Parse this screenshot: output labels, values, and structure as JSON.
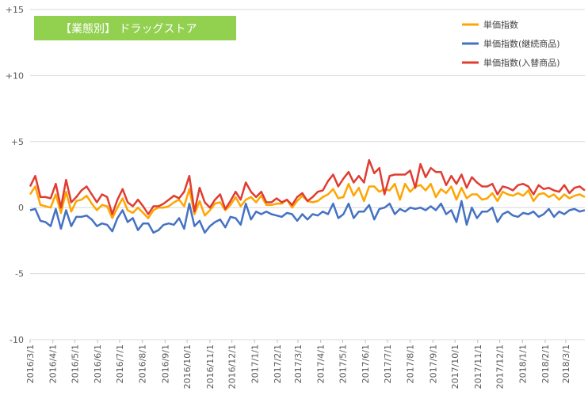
{
  "chart_data": {
    "type": "line",
    "title": "【業態別】 ドラッグストア",
    "title_bg_color": "#92d050",
    "ylim": [
      -10,
      15
    ],
    "y_ticks": [
      {
        "value": 15,
        "label": "+15"
      },
      {
        "value": 10,
        "label": "+10"
      },
      {
        "value": 5,
        "label": "+5"
      },
      {
        "value": 0,
        "label": "0"
      },
      {
        "value": -5,
        "label": "-5"
      },
      {
        "value": -10,
        "label": "-10"
      }
    ],
    "grid": true,
    "legend_position": "top-right",
    "x_start": "2016-03-01",
    "x_interval": "weekly",
    "x_tick_labels": [
      "2016/3/1",
      "2016/4/1",
      "2016/5/1",
      "2016/6/1",
      "2016/7/1",
      "2016/8/1",
      "2016/9/1",
      "2016/10/1",
      "2016/11/1",
      "2016/12/1",
      "2017/1/1",
      "2017/2/1",
      "2017/3/1",
      "2017/4/1",
      "2017/5/1",
      "2017/6/1",
      "2017/7/1",
      "2017/8/1",
      "2017/9/1",
      "2017/10/1",
      "2017/11/1",
      "2017/12/1",
      "2018/1/1",
      "2018/2/1",
      "2018/3/1"
    ],
    "x_tick_dates": [
      "2016-03-01",
      "2016-04-01",
      "2016-05-01",
      "2016-06-01",
      "2016-07-01",
      "2016-08-01",
      "2016-09-01",
      "2016-10-01",
      "2016-11-01",
      "2016-12-01",
      "2017-01-01",
      "2017-02-01",
      "2017-03-01",
      "2017-04-01",
      "2017-05-01",
      "2017-06-01",
      "2017-07-01",
      "2017-08-01",
      "2017-09-01",
      "2017-10-01",
      "2017-11-01",
      "2017-12-01",
      "2018-01-01",
      "2018-02-01",
      "2018-03-01"
    ],
    "series": [
      {
        "name": "単価指数",
        "color": "#ffa500",
        "values": [
          1.0,
          1.6,
          0.2,
          0.1,
          0.0,
          1.0,
          -0.4,
          1.2,
          -0.3,
          0.5,
          0.6,
          0.9,
          0.3,
          -0.2,
          0.2,
          0.1,
          -0.8,
          0.0,
          0.7,
          -0.2,
          -0.4,
          0.0,
          -0.4,
          -0.8,
          -0.2,
          0.0,
          0.0,
          0.1,
          0.4,
          0.6,
          0.1,
          1.4,
          -0.5,
          0.5,
          -0.6,
          -0.2,
          0.3,
          0.4,
          -0.2,
          0.2,
          0.8,
          0.1,
          0.6,
          0.8,
          0.4,
          0.9,
          0.2,
          0.2,
          0.3,
          0.3,
          0.6,
          0.0,
          0.5,
          0.9,
          0.5,
          0.4,
          0.5,
          0.8,
          1.0,
          1.4,
          0.7,
          0.8,
          1.8,
          0.9,
          1.5,
          0.5,
          1.6,
          1.6,
          1.2,
          1.4,
          1.3,
          1.8,
          0.6,
          1.8,
          1.2,
          1.6,
          1.7,
          1.3,
          1.8,
          0.8,
          1.4,
          1.1,
          1.6,
          0.6,
          1.5,
          0.7,
          1.0,
          1.0,
          0.6,
          0.7,
          1.1,
          0.5,
          1.2,
          1.0,
          0.9,
          1.1,
          0.9,
          1.3,
          0.5,
          1.0,
          1.1,
          0.8,
          1.0,
          0.6,
          1.0,
          0.7,
          0.9,
          1.0,
          0.8
        ]
      },
      {
        "name": "単価指数(継続商品)",
        "color": "#4472c4",
        "values": [
          -0.2,
          -0.1,
          -1.0,
          -1.1,
          -1.4,
          -0.1,
          -1.6,
          -0.2,
          -1.4,
          -0.7,
          -0.7,
          -0.6,
          -0.9,
          -1.4,
          -1.2,
          -1.3,
          -1.8,
          -0.8,
          -0.2,
          -1.1,
          -0.8,
          -1.7,
          -1.2,
          -1.2,
          -1.9,
          -1.7,
          -1.3,
          -1.2,
          -1.3,
          -0.8,
          -1.6,
          0.3,
          -1.4,
          -1.0,
          -1.9,
          -1.4,
          -1.1,
          -0.9,
          -1.5,
          -0.7,
          -0.8,
          -1.3,
          0.3,
          -0.9,
          -0.3,
          -0.5,
          -0.3,
          -0.5,
          -0.6,
          -0.7,
          -0.4,
          -0.5,
          -1.0,
          -0.5,
          -0.9,
          -0.5,
          -0.6,
          -0.3,
          -0.5,
          0.3,
          -0.8,
          -0.5,
          0.3,
          -0.8,
          -0.3,
          -0.3,
          0.2,
          -0.9,
          -0.1,
          0.0,
          0.3,
          -0.5,
          -0.1,
          -0.3,
          0.0,
          -0.1,
          0.0,
          -0.2,
          0.1,
          -0.2,
          0.3,
          -0.5,
          -0.2,
          -1.1,
          0.5,
          -1.3,
          0.0,
          -0.8,
          -0.3,
          -0.3,
          0.0,
          -1.1,
          -0.5,
          -0.3,
          -0.6,
          -0.7,
          -0.4,
          -0.5,
          -0.3,
          -0.7,
          -0.5,
          -0.1,
          -0.7,
          -0.3,
          -0.5,
          -0.2,
          -0.1,
          -0.3,
          -0.2
        ]
      },
      {
        "name": "単価指数(入替商品)",
        "color": "#e03c31",
        "values": [
          1.6,
          2.4,
          0.8,
          0.8,
          0.7,
          1.8,
          0.0,
          2.1,
          0.4,
          0.8,
          1.3,
          1.6,
          1.0,
          0.4,
          1.0,
          0.8,
          -0.5,
          0.6,
          1.4,
          0.4,
          0.1,
          0.6,
          0.1,
          -0.5,
          0.1,
          0.1,
          0.3,
          0.6,
          0.9,
          0.7,
          1.2,
          2.4,
          -0.3,
          1.5,
          0.4,
          0.0,
          0.6,
          1.0,
          -0.1,
          0.5,
          1.2,
          0.6,
          1.9,
          1.2,
          0.8,
          1.2,
          0.4,
          0.4,
          0.7,
          0.4,
          0.6,
          0.2,
          0.8,
          1.1,
          0.5,
          0.8,
          1.2,
          1.3,
          2.0,
          2.5,
          1.6,
          2.2,
          2.7,
          1.9,
          2.4,
          1.9,
          3.6,
          2.6,
          3.0,
          1.0,
          2.4,
          2.5,
          2.5,
          2.5,
          2.8,
          1.5,
          3.3,
          2.3,
          3.0,
          2.7,
          2.7,
          1.7,
          2.4,
          1.8,
          2.5,
          1.5,
          2.3,
          1.9,
          1.6,
          1.6,
          1.8,
          1.0,
          1.6,
          1.5,
          1.3,
          1.7,
          1.8,
          1.6,
          1.0,
          1.7,
          1.4,
          1.5,
          1.3,
          1.2,
          1.7,
          1.1,
          1.5,
          1.6,
          1.3
        ]
      }
    ]
  }
}
